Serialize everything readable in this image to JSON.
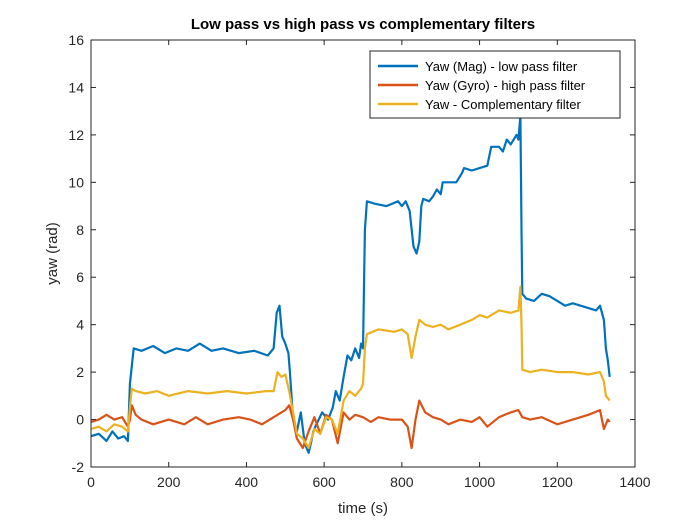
{
  "chart_data": {
    "type": "line",
    "title": "Low pass vs high pass vs complementary filters",
    "xlabel": "time (s)",
    "ylabel": "yaw (rad)",
    "xlim": [
      0,
      1400
    ],
    "ylim": [
      -2,
      16
    ],
    "xticks": [
      0,
      200,
      400,
      600,
      800,
      1000,
      1200,
      1400
    ],
    "yticks": [
      -2,
      0,
      2,
      4,
      6,
      8,
      10,
      12,
      14,
      16
    ],
    "xtick_labels": [
      "0",
      "200",
      "400",
      "600",
      "800",
      "1000",
      "1200",
      "1400"
    ],
    "ytick_labels": [
      "-2",
      "0",
      "2",
      "4",
      "6",
      "8",
      "10",
      "12",
      "14",
      "16"
    ],
    "grid": false,
    "legend_position": "top-right",
    "series": [
      {
        "name": "Yaw (Mag) - low pass filter",
        "color": "#0072BD",
        "x": [
          0,
          20,
          40,
          55,
          70,
          85,
          95,
          100,
          110,
          130,
          160,
          190,
          220,
          250,
          280,
          310,
          340,
          380,
          420,
          455,
          470,
          478,
          485,
          492,
          500,
          508,
          512,
          520,
          530,
          540,
          550,
          560,
          566,
          572,
          580,
          595,
          610,
          622,
          630,
          640,
          650,
          660,
          670,
          680,
          690,
          695,
          700,
          705,
          710,
          730,
          760,
          790,
          800,
          810,
          820,
          830,
          838,
          845,
          850,
          855,
          870,
          880,
          890,
          900,
          905,
          920,
          940,
          955,
          960,
          980,
          1000,
          1020,
          1030,
          1040,
          1050,
          1060,
          1070,
          1080,
          1095,
          1100,
          1105,
          1108,
          1110,
          1115,
          1120,
          1140,
          1160,
          1180,
          1200,
          1220,
          1240,
          1260,
          1280,
          1300,
          1310,
          1320,
          1325,
          1330,
          1335
        ],
        "y": [
          -0.7,
          -0.6,
          -0.9,
          -0.5,
          -0.8,
          -0.7,
          -0.9,
          1.5,
          3.0,
          2.9,
          3.1,
          2.8,
          3.0,
          2.9,
          3.2,
          2.9,
          3.0,
          2.8,
          2.9,
          2.7,
          3.0,
          4.5,
          4.8,
          3.5,
          3.2,
          2.8,
          2.0,
          0.0,
          -0.5,
          0.3,
          -1.0,
          -1.4,
          -1.0,
          -0.5,
          -0.2,
          0.3,
          0.0,
          0.5,
          1.2,
          0.8,
          1.8,
          2.7,
          2.5,
          3.0,
          2.6,
          3.2,
          3.0,
          8.0,
          9.2,
          9.1,
          9.0,
          9.2,
          9.0,
          9.2,
          8.8,
          7.3,
          7.0,
          7.5,
          9.0,
          9.3,
          9.2,
          9.4,
          9.7,
          9.5,
          10.0,
          10.0,
          10.0,
          10.4,
          10.6,
          10.5,
          10.6,
          10.7,
          11.5,
          11.5,
          11.5,
          11.3,
          11.8,
          11.6,
          12.0,
          11.8,
          12.8,
          8.0,
          5.3,
          5.2,
          5.1,
          5.0,
          5.3,
          5.2,
          5.0,
          4.8,
          4.9,
          4.8,
          4.7,
          4.6,
          4.8,
          4.2,
          3.0,
          2.5,
          1.8
        ]
      },
      {
        "name": "Yaw (Gyro) - high pass filter",
        "color": "#D95319",
        "x": [
          0,
          20,
          40,
          60,
          80,
          95,
          100,
          105,
          115,
          130,
          160,
          200,
          240,
          270,
          300,
          340,
          380,
          410,
          440,
          470,
          490,
          500,
          510,
          520,
          530,
          545,
          560,
          575,
          590,
          605,
          620,
          635,
          650,
          665,
          680,
          700,
          720,
          740,
          770,
          800,
          815,
          825,
          835,
          845,
          860,
          880,
          900,
          920,
          950,
          980,
          1000,
          1020,
          1050,
          1080,
          1100,
          1110,
          1130,
          1160,
          1200,
          1240,
          1280,
          1310,
          1320,
          1330,
          1335
        ],
        "y": [
          -0.1,
          0.0,
          0.2,
          0.0,
          0.1,
          -0.3,
          0.0,
          0.6,
          0.2,
          0.0,
          -0.2,
          0.0,
          -0.2,
          0.1,
          -0.2,
          0.0,
          0.1,
          0.0,
          -0.2,
          0.1,
          0.3,
          0.4,
          0.6,
          0.0,
          -0.8,
          -1.2,
          -0.5,
          0.1,
          -0.6,
          0.2,
          0.0,
          -1.0,
          0.3,
          0.0,
          0.2,
          0.1,
          -0.1,
          0.1,
          0.0,
          0.0,
          -0.3,
          -1.2,
          0.0,
          0.8,
          0.3,
          0.1,
          0.0,
          -0.2,
          0.0,
          -0.1,
          0.1,
          -0.3,
          0.1,
          0.3,
          0.4,
          0.1,
          0.0,
          0.1,
          -0.2,
          0.0,
          0.2,
          0.4,
          -0.4,
          0.0,
          -0.1
        ]
      },
      {
        "name": "Yaw - Complementary filter",
        "color": "#EDB120",
        "x": [
          0,
          20,
          40,
          60,
          80,
          95,
          100,
          105,
          115,
          140,
          170,
          200,
          250,
          300,
          350,
          400,
          450,
          470,
          480,
          490,
          500,
          510,
          520,
          530,
          545,
          560,
          575,
          590,
          605,
          620,
          635,
          650,
          665,
          680,
          695,
          700,
          705,
          710,
          740,
          780,
          800,
          815,
          825,
          835,
          845,
          860,
          880,
          900,
          920,
          950,
          980,
          1000,
          1020,
          1050,
          1080,
          1100,
          1105,
          1108,
          1110,
          1130,
          1160,
          1200,
          1240,
          1280,
          1310,
          1320,
          1325,
          1330,
          1335
        ],
        "y": [
          -0.4,
          -0.3,
          -0.5,
          -0.2,
          -0.3,
          -0.5,
          0.5,
          1.3,
          1.2,
          1.1,
          1.2,
          1.0,
          1.2,
          1.1,
          1.2,
          1.1,
          1.2,
          1.2,
          2.0,
          1.8,
          1.9,
          1.2,
          0.3,
          -0.6,
          -0.8,
          -1.2,
          -0.4,
          -0.6,
          0.1,
          0.0,
          -0.6,
          0.8,
          1.2,
          1.0,
          1.3,
          1.5,
          3.0,
          3.6,
          3.8,
          3.7,
          3.8,
          3.6,
          2.6,
          3.5,
          4.2,
          4.0,
          3.9,
          4.0,
          3.8,
          4.0,
          4.2,
          4.4,
          4.3,
          4.6,
          4.5,
          4.6,
          5.6,
          4.0,
          2.1,
          2.0,
          2.1,
          2.0,
          2.0,
          1.9,
          2.0,
          1.6,
          1.0,
          0.9,
          0.8
        ]
      }
    ]
  }
}
